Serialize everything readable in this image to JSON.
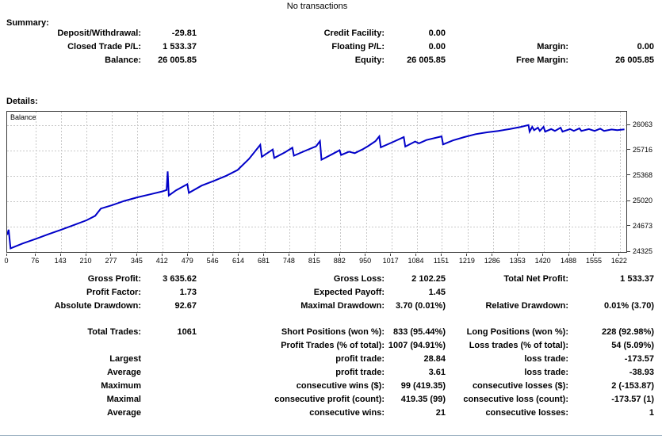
{
  "header": {
    "title": "No transactions"
  },
  "summary": {
    "heading": "Summary:",
    "rows": [
      [
        {
          "label": "Deposit/Withdrawal:",
          "value": "-29.81"
        },
        {
          "label": "Credit Facility:",
          "value": "0.00"
        },
        null
      ],
      [
        {
          "label": "Closed Trade P/L:",
          "value": "1 533.37"
        },
        {
          "label": "Floating P/L:",
          "value": "0.00"
        },
        {
          "label": "Margin:",
          "value": "0.00"
        }
      ],
      [
        {
          "label": "Balance:",
          "value": "26 005.85"
        },
        {
          "label": "Equity:",
          "value": "26 005.85"
        },
        {
          "label": "Free Margin:",
          "value": "26 005.85"
        }
      ]
    ]
  },
  "details": {
    "heading": "Details:",
    "rows": [
      [
        {
          "label": "Gross Profit:",
          "value": "3 635.62"
        },
        {
          "label": "Gross Loss:",
          "value": "2 102.25"
        },
        {
          "label": "Total Net Profit:",
          "value": "1 533.37"
        }
      ],
      [
        {
          "label": "Profit Factor:",
          "value": "1.73"
        },
        {
          "label": "Expected Payoff:",
          "value": "1.45"
        },
        null
      ],
      [
        {
          "label": "Absolute Drawdown:",
          "value": "92.67"
        },
        {
          "label": "Maximal Drawdown:",
          "value": "3.70 (0.01%)"
        },
        {
          "label": "Relative Drawdown:",
          "value": "0.01% (3.70)"
        }
      ],
      [
        {
          "label": "Total Trades:",
          "value": "1061"
        },
        {
          "label": "Short Positions (won %):",
          "value": "833 (95.44%)"
        },
        {
          "label": "Long Positions (won %):",
          "value": "228 (92.98%)"
        }
      ],
      [
        null,
        {
          "label": "Profit Trades (% of total):",
          "value": "1007 (94.91%)"
        },
        {
          "label": "Loss trades (% of total):",
          "value": "54 (5.09%)"
        }
      ],
      [
        {
          "label": "Largest",
          "value": ""
        },
        {
          "label": "profit trade:",
          "value": "28.84"
        },
        {
          "label": "loss trade:",
          "value": "-173.57"
        }
      ],
      [
        {
          "label": "Average",
          "value": ""
        },
        {
          "label": "profit trade:",
          "value": "3.61"
        },
        {
          "label": "loss trade:",
          "value": "-38.93"
        }
      ],
      [
        {
          "label": "Maximum",
          "value": ""
        },
        {
          "label": "consecutive wins ($):",
          "value": "99 (419.35)"
        },
        {
          "label": "consecutive losses ($):",
          "value": "2 (-153.87)"
        }
      ],
      [
        {
          "label": "Maximal",
          "value": ""
        },
        {
          "label": "consecutive profit (count):",
          "value": "419.35 (99)"
        },
        {
          "label": "consecutive loss (count):",
          "value": "-173.57 (1)"
        }
      ],
      [
        {
          "label": "Average",
          "value": ""
        },
        {
          "label": "consecutive wins:",
          "value": "21"
        },
        {
          "label": "consecutive losses:",
          "value": "1"
        }
      ]
    ]
  },
  "chart_data": {
    "type": "line",
    "title": "Balance",
    "legend_position": "top-left-inside",
    "grid": true,
    "line_color": "#0000C8",
    "grid_color": "#c8c8c8",
    "xlim": [
      0,
      1639
    ],
    "ylim": [
      24325,
      26248
    ],
    "x_ticks": [
      0,
      76,
      143,
      210,
      277,
      345,
      412,
      479,
      546,
      614,
      681,
      748,
      815,
      882,
      950,
      1017,
      1084,
      1151,
      1219,
      1286,
      1353,
      1420,
      1488,
      1555,
      1622
    ],
    "y_ticks": [
      26063,
      25716,
      25368,
      25020,
      24673,
      24325
    ],
    "series": [
      {
        "name": "Balance",
        "points": [
          [
            0,
            24560
          ],
          [
            4,
            24630
          ],
          [
            9,
            24375
          ],
          [
            40,
            24440
          ],
          [
            76,
            24505
          ],
          [
            110,
            24570
          ],
          [
            143,
            24630
          ],
          [
            177,
            24695
          ],
          [
            210,
            24760
          ],
          [
            233,
            24820
          ],
          [
            248,
            24920
          ],
          [
            277,
            24965
          ],
          [
            310,
            25025
          ],
          [
            345,
            25075
          ],
          [
            378,
            25115
          ],
          [
            410,
            25155
          ],
          [
            422,
            25175
          ],
          [
            425,
            25430
          ],
          [
            428,
            25100
          ],
          [
            447,
            25170
          ],
          [
            477,
            25255
          ],
          [
            481,
            25135
          ],
          [
            515,
            25235
          ],
          [
            547,
            25300
          ],
          [
            580,
            25370
          ],
          [
            610,
            25450
          ],
          [
            640,
            25600
          ],
          [
            670,
            25795
          ],
          [
            674,
            25630
          ],
          [
            703,
            25730
          ],
          [
            707,
            25615
          ],
          [
            735,
            25690
          ],
          [
            755,
            25755
          ],
          [
            759,
            25645
          ],
          [
            788,
            25710
          ],
          [
            818,
            25775
          ],
          [
            828,
            25845
          ],
          [
            832,
            25590
          ],
          [
            860,
            25665
          ],
          [
            880,
            25720
          ],
          [
            884,
            25655
          ],
          [
            905,
            25700
          ],
          [
            920,
            25680
          ],
          [
            940,
            25730
          ],
          [
            955,
            25775
          ],
          [
            975,
            25845
          ],
          [
            985,
            25910
          ],
          [
            989,
            25760
          ],
          [
            1020,
            25830
          ],
          [
            1050,
            25900
          ],
          [
            1054,
            25770
          ],
          [
            1080,
            25840
          ],
          [
            1090,
            25815
          ],
          [
            1110,
            25860
          ],
          [
            1150,
            25910
          ],
          [
            1154,
            25800
          ],
          [
            1180,
            25855
          ],
          [
            1210,
            25900
          ],
          [
            1240,
            25940
          ],
          [
            1270,
            25965
          ],
          [
            1300,
            25985
          ],
          [
            1330,
            26010
          ],
          [
            1360,
            26040
          ],
          [
            1380,
            26065
          ],
          [
            1383,
            25975
          ],
          [
            1390,
            26040
          ],
          [
            1395,
            25995
          ],
          [
            1405,
            26030
          ],
          [
            1410,
            25985
          ],
          [
            1420,
            26040
          ],
          [
            1424,
            25975
          ],
          [
            1440,
            26010
          ],
          [
            1450,
            25985
          ],
          [
            1465,
            26030
          ],
          [
            1470,
            25975
          ],
          [
            1490,
            26010
          ],
          [
            1500,
            25985
          ],
          [
            1515,
            26020
          ],
          [
            1520,
            25985
          ],
          [
            1540,
            26010
          ],
          [
            1555,
            25985
          ],
          [
            1570,
            26015
          ],
          [
            1580,
            25985
          ],
          [
            1600,
            26005
          ],
          [
            1615,
            25995
          ],
          [
            1634,
            26006
          ]
        ]
      }
    ]
  }
}
